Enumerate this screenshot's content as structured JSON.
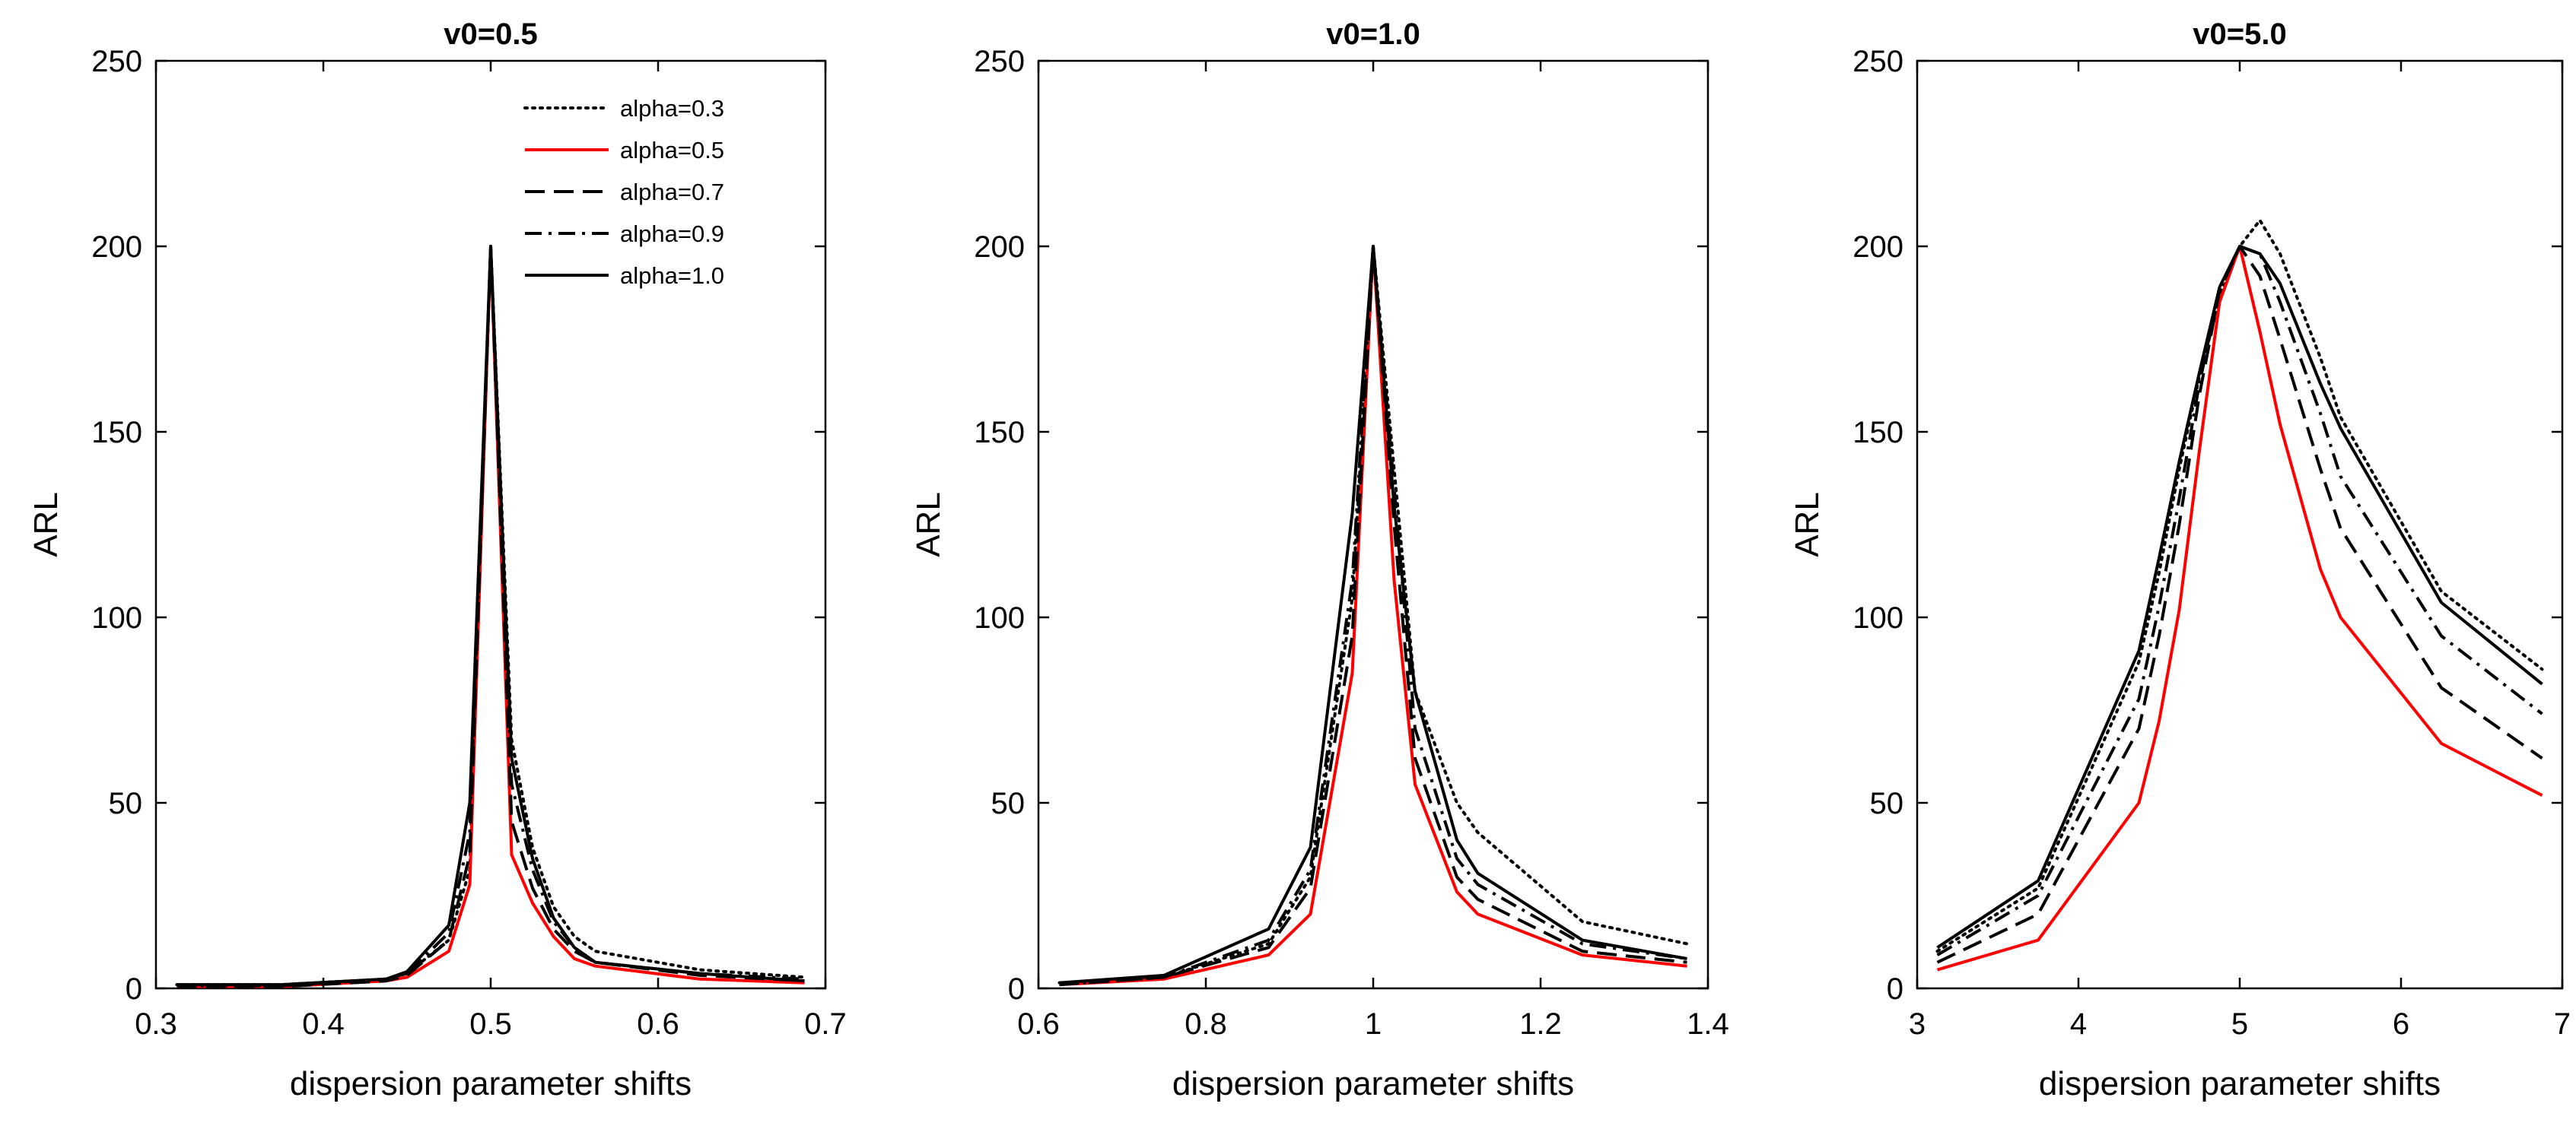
{
  "colors": {
    "red": "#ff0000",
    "black": "#000000"
  },
  "legend": {
    "position": "top-right of first panel",
    "entries": [
      {
        "label": "alpha=0.3",
        "style": "dotted",
        "color": "#000000"
      },
      {
        "label": "alpha=0.5",
        "style": "solid",
        "color": "#ff0000"
      },
      {
        "label": "alpha=0.7",
        "style": "dashed",
        "color": "#000000"
      },
      {
        "label": "alpha=0.9",
        "style": "dashdot",
        "color": "#000000"
      },
      {
        "label": "alpha=1.0",
        "style": "solid",
        "color": "#000000"
      }
    ]
  },
  "chart_data": [
    {
      "type": "line",
      "title": "v0=0.5",
      "xlabel": "dispersion parameter shifts",
      "ylabel": "ARL",
      "xlim": [
        0.3,
        0.7
      ],
      "ylim": [
        0,
        250
      ],
      "xticks": [
        0.3,
        0.4,
        0.5,
        0.6,
        0.7
      ],
      "xtick_labels": [
        "0.3",
        "0.4",
        "0.5",
        "0.6",
        "0.7"
      ],
      "yticks": [
        0,
        50,
        100,
        150,
        200,
        250
      ],
      "ytick_labels": [
        "0",
        "50",
        "100",
        "150",
        "200",
        "250"
      ],
      "x": [
        0.3125,
        0.375,
        0.4375,
        0.45,
        0.475,
        0.4875,
        0.5,
        0.5125,
        0.525,
        0.5375,
        0.55,
        0.5625,
        0.625,
        0.6875
      ],
      "series": [
        {
          "name": "alpha=0.3",
          "values": [
            1,
            1,
            2.5,
            4,
            13,
            32,
            200,
            67,
            38,
            22,
            14,
            10,
            5,
            3
          ]
        },
        {
          "name": "alpha=0.5",
          "values": [
            0.5,
            0.5,
            2,
            3,
            10,
            28,
            200,
            36,
            23,
            14,
            8,
            6,
            2.5,
            1.5
          ]
        },
        {
          "name": "alpha=0.7",
          "values": [
            0.5,
            0.5,
            2,
            3.5,
            13,
            36,
            200,
            45,
            27,
            16,
            10,
            7,
            3.5,
            2
          ]
        },
        {
          "name": "alpha=0.9",
          "values": [
            0.7,
            0.7,
            2.5,
            4,
            15,
            42,
            200,
            55,
            32,
            18,
            11,
            7,
            4,
            2.5
          ]
        },
        {
          "name": "alpha=1.0",
          "values": [
            1,
            1,
            2.5,
            4.5,
            17,
            50,
            200,
            62,
            35,
            19,
            11,
            7,
            4,
            2
          ]
        }
      ]
    },
    {
      "type": "line",
      "title": "v0=1.0",
      "xlabel": "dispersion parameter shifts",
      "ylabel": "ARL",
      "xlim": [
        0.6,
        1.4
      ],
      "ylim": [
        0,
        250
      ],
      "xticks": [
        0.6,
        0.8,
        1.0,
        1.2,
        1.4
      ],
      "xtick_labels": [
        "0.6",
        "0.8",
        "1",
        "1.2",
        "1.4"
      ],
      "yticks": [
        0,
        50,
        100,
        150,
        200,
        250
      ],
      "ytick_labels": [
        "0",
        "50",
        "100",
        "150",
        "200",
        "250"
      ],
      "x": [
        0.625,
        0.75,
        0.875,
        0.925,
        0.975,
        1.0,
        1.025,
        1.05,
        1.1,
        1.125,
        1.25,
        1.375
      ],
      "series": [
        {
          "name": "alpha=0.3",
          "values": [
            1.5,
            3,
            12,
            30,
            105,
            200,
            140,
            80,
            50,
            42,
            18,
            12
          ]
        },
        {
          "name": "alpha=0.5",
          "values": [
            1,
            2.5,
            9,
            20,
            85,
            200,
            110,
            55,
            26,
            20,
            9,
            6
          ]
        },
        {
          "name": "alpha=0.7",
          "values": [
            1,
            3,
            11,
            27,
            95,
            200,
            125,
            62,
            30,
            24,
            10,
            7
          ]
        },
        {
          "name": "alpha=0.9",
          "values": [
            1,
            3,
            13,
            32,
            110,
            200,
            135,
            70,
            35,
            28,
            12,
            8
          ]
        },
        {
          "name": "alpha=1.0",
          "values": [
            1.5,
            3.5,
            16,
            38,
            128,
            200,
            130,
            80,
            40,
            31,
            13,
            8
          ]
        }
      ]
    },
    {
      "type": "line",
      "title": "v0=5.0",
      "xlabel": "dispersion parameter shifts",
      "ylabel": "ARL",
      "xlim": [
        3,
        7
      ],
      "ylim": [
        0,
        250
      ],
      "xticks": [
        3,
        4,
        5,
        6,
        7
      ],
      "xtick_labels": [
        "3",
        "4",
        "5",
        "6",
        "7"
      ],
      "yticks": [
        0,
        50,
        100,
        150,
        200,
        250
      ],
      "ytick_labels": [
        "0",
        "50",
        "100",
        "150",
        "200",
        "250"
      ],
      "x": [
        3.125,
        3.75,
        4.375,
        4.5,
        4.625,
        4.75,
        4.875,
        5.0,
        5.125,
        5.25,
        5.5,
        5.625,
        6.25,
        6.875
      ],
      "series": [
        {
          "name": "alpha=0.3",
          "values": [
            10,
            27,
            88,
            112,
            140,
            165,
            186,
            200,
            207,
            198,
            170,
            154,
            107,
            86
          ]
        },
        {
          "name": "alpha=0.5",
          "values": [
            5,
            13,
            50,
            72,
            102,
            145,
            185,
            200,
            177,
            152,
            113,
            100,
            66,
            52
          ]
        },
        {
          "name": "alpha=0.7",
          "values": [
            7,
            20,
            70,
            95,
            125,
            160,
            188,
            200,
            192,
            175,
            140,
            124,
            81,
            62
          ]
        },
        {
          "name": "alpha=0.9",
          "values": [
            9,
            25,
            78,
            103,
            132,
            163,
            188,
            200,
            198,
            185,
            155,
            138,
            95,
            74
          ]
        },
        {
          "name": "alpha=1.0",
          "values": [
            11,
            29,
            91,
            116,
            142,
            166,
            189,
            200,
            198,
            190,
            163,
            151,
            104,
            82
          ]
        }
      ]
    }
  ]
}
